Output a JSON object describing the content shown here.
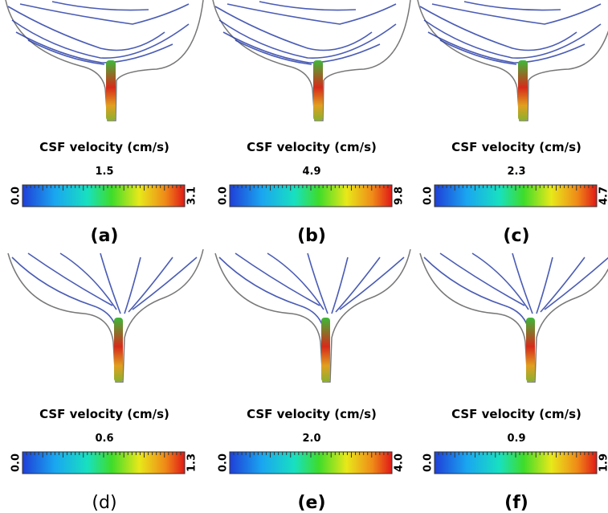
{
  "panels": [
    {
      "label": "(a)",
      "colorbar": {
        "title": "CSF velocity (cm/s)",
        "min": "0.0",
        "mid": "1.5",
        "max": "3.1"
      }
    },
    {
      "label": "(b)",
      "colorbar": {
        "title": "CSF velocity (cm/s)",
        "min": "0.0",
        "mid": "4.9",
        "max": "9.8"
      }
    },
    {
      "label": "(c)",
      "colorbar": {
        "title": "CSF velocity (cm/s)",
        "min": "0.0",
        "mid": "2.3",
        "max": "4.7"
      }
    },
    {
      "label": "(d)",
      "colorbar": {
        "title": "CSF velocity (cm/s)",
        "min": "0.0",
        "mid": "0.6",
        "max": "1.3"
      }
    },
    {
      "label": "(e)",
      "colorbar": {
        "title": "CSF velocity (cm/s)",
        "min": "0.0",
        "mid": "2.0",
        "max": "4.0"
      }
    },
    {
      "label": "(f)",
      "colorbar": {
        "title": "CSF velocity (cm/s)",
        "min": "0.0",
        "mid": "0.9",
        "max": "1.9"
      }
    }
  ]
}
